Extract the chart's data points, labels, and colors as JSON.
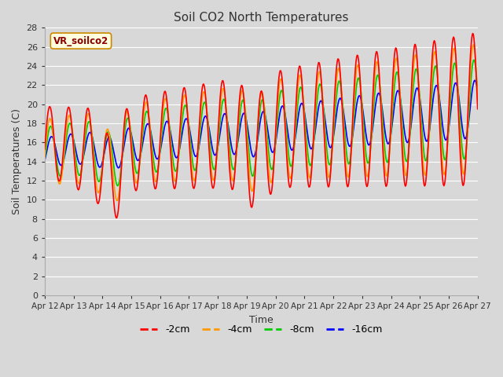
{
  "title": "Soil CO2 North Temperatures",
  "xlabel": "Time",
  "ylabel": "Soil Temperatures (C)",
  "legend_label": "VR_soilco2",
  "series_labels": [
    "-2cm",
    "-4cm",
    "-8cm",
    "-16cm"
  ],
  "series_colors": [
    "#ff0000",
    "#ff9900",
    "#00cc00",
    "#0000ff"
  ],
  "ylim": [
    0,
    28
  ],
  "yticks": [
    0,
    2,
    4,
    6,
    8,
    10,
    12,
    14,
    16,
    18,
    20,
    22,
    24,
    26,
    28
  ],
  "xtick_labels": [
    "Apr 12",
    "Apr 13",
    "Apr 14",
    "Apr 15",
    "Apr 16",
    "Apr 17",
    "Apr 18",
    "Apr 19",
    "Apr 20",
    "Apr 21",
    "Apr 22",
    "Apr 23",
    "Apr 24",
    "Apr 25",
    "Apr 26",
    "Apr 27"
  ],
  "bg_color": "#d8d8d8",
  "plot_bg_color": "#d8d8d8",
  "line_width": 1.2,
  "n_days": 15,
  "n_pts": 720
}
